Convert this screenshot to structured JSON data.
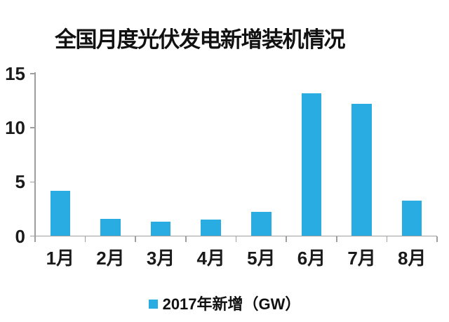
{
  "title": "全国月度光伏发电新增装机情况",
  "legend": {
    "label": "2017年新增（GW）"
  },
  "colors": {
    "bar": "#29ACE2",
    "axis": "#9E9E9E",
    "text": "#1A1A1A",
    "background": "#FFFFFF"
  },
  "chart_data": {
    "type": "bar",
    "title": "全国月度光伏发电新增装机情况",
    "categories": [
      "1月",
      "2月",
      "3月",
      "4月",
      "5月",
      "6月",
      "7月",
      "8月"
    ],
    "series": [
      {
        "name": "2017年新增（GW）",
        "values": [
          4.2,
          1.6,
          1.3,
          1.5,
          2.25,
          13.2,
          12.2,
          3.3
        ]
      }
    ],
    "xlabel": "",
    "ylabel": "",
    "ylim": [
      0,
      15
    ],
    "yticks": [
      0,
      5,
      10,
      15
    ],
    "grid": false,
    "legend_position": "bottom"
  }
}
